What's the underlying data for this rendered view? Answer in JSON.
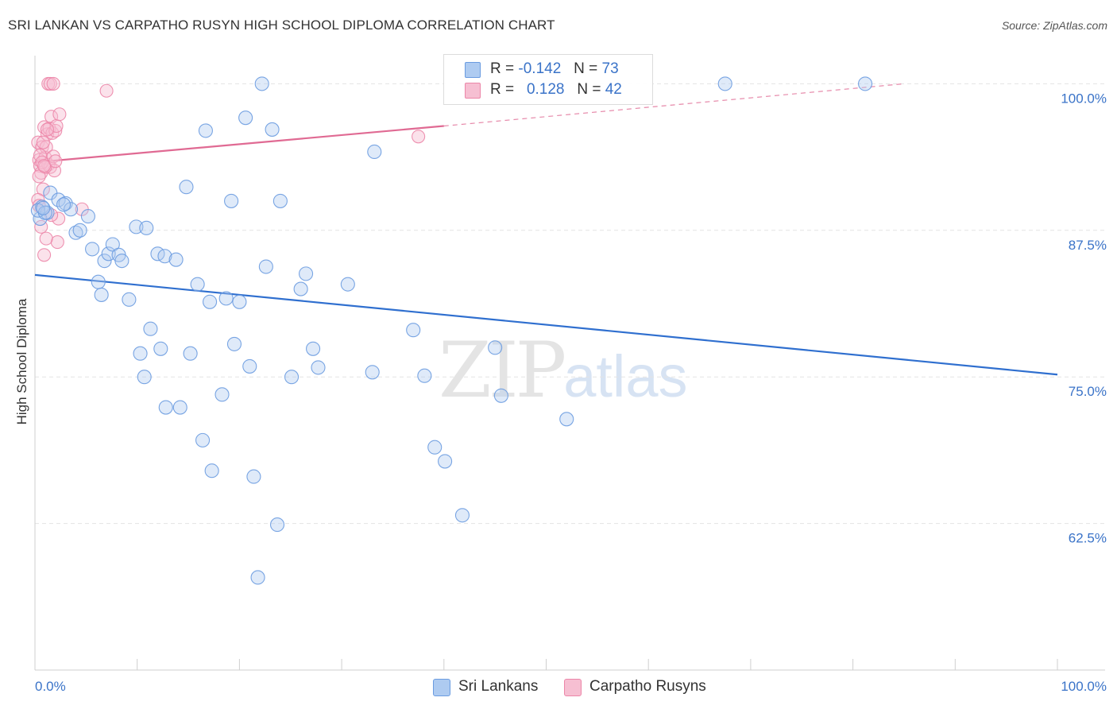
{
  "header": {
    "title": "SRI LANKAN VS CARPATHO RUSYN HIGH SCHOOL DIPLOMA CORRELATION CHART",
    "source": "Source: ZipAtlas.com"
  },
  "stats": {
    "sri": {
      "r_label": "R =",
      "r_value": "-0.142",
      "n_label": "N =",
      "n_value": "73"
    },
    "carp": {
      "r_label": "R =",
      "r_value": "0.128",
      "n_label": "N =",
      "n_value": "42"
    }
  },
  "colors": {
    "sri": "#6a9be0",
    "sri_fill": "#aecbf1",
    "sri_line": "#2f6fcf",
    "carp": "#ec86a8",
    "carp_fill": "#f6bfd2",
    "carp_line": "#e06a93",
    "tick_label": "#3a73c8",
    "grid": "#e3e3e3"
  },
  "chart_data": {
    "type": "scatter",
    "title": "SRI LANKAN VS CARPATHO RUSYN HIGH SCHOOL DIPLOMA CORRELATION CHART",
    "xlabel": "",
    "ylabel": "High School Diploma",
    "xlim": [
      0,
      100
    ],
    "ylim": [
      50,
      102.4
    ],
    "x_tick_labels": [
      "0.0%",
      "100.0%"
    ],
    "y_ticks": [
      62.5,
      75.0,
      87.5,
      100.0
    ],
    "y_tick_labels": [
      "62.5%",
      "75.0%",
      "87.5%",
      "100.0%"
    ],
    "grid": true,
    "legend_placement": "bottom",
    "watermark": {
      "main": "ZIP",
      "sub": "atlas"
    },
    "series": [
      {
        "name": "Sri Lankans",
        "trend": [
          [
            0,
            83.7
          ],
          [
            100,
            75.2
          ]
        ],
        "points": [
          [
            0.5,
            88.5
          ],
          [
            0.7,
            89.5
          ],
          [
            1.2,
            89.0
          ],
          [
            1.5,
            90.7
          ],
          [
            2.3,
            90.1
          ],
          [
            3.0,
            89.8
          ],
          [
            3.5,
            89.3
          ],
          [
            4.0,
            87.3
          ],
          [
            4.4,
            87.5
          ],
          [
            5.2,
            88.7
          ],
          [
            5.6,
            85.9
          ],
          [
            6.2,
            83.1
          ],
          [
            6.5,
            82.0
          ],
          [
            6.8,
            84.9
          ],
          [
            7.2,
            85.5
          ],
          [
            7.6,
            86.3
          ],
          [
            8.2,
            85.4
          ],
          [
            8.5,
            84.9
          ],
          [
            9.2,
            81.6
          ],
          [
            9.9,
            87.8
          ],
          [
            10.3,
            77.0
          ],
          [
            10.7,
            75.0
          ],
          [
            10.9,
            87.7
          ],
          [
            11.3,
            79.1
          ],
          [
            12.0,
            85.5
          ],
          [
            12.3,
            77.4
          ],
          [
            12.7,
            85.3
          ],
          [
            12.8,
            72.4
          ],
          [
            13.8,
            85.0
          ],
          [
            14.2,
            72.4
          ],
          [
            14.8,
            91.2
          ],
          [
            15.2,
            77.0
          ],
          [
            15.9,
            82.9
          ],
          [
            16.4,
            69.6
          ],
          [
            16.7,
            96.0
          ],
          [
            17.1,
            81.4
          ],
          [
            17.3,
            67.0
          ],
          [
            18.3,
            73.5
          ],
          [
            18.7,
            81.7
          ],
          [
            19.2,
            90.0
          ],
          [
            19.5,
            77.8
          ],
          [
            20.0,
            81.4
          ],
          [
            20.6,
            97.1
          ],
          [
            21.0,
            75.9
          ],
          [
            21.4,
            66.5
          ],
          [
            22.2,
            100.0
          ],
          [
            22.6,
            84.4
          ],
          [
            23.2,
            96.1
          ],
          [
            23.7,
            62.4
          ],
          [
            24.0,
            90.0
          ],
          [
            25.1,
            75.0
          ],
          [
            26.0,
            82.5
          ],
          [
            26.5,
            83.8
          ],
          [
            27.2,
            77.4
          ],
          [
            27.7,
            75.8
          ],
          [
            30.6,
            82.9
          ],
          [
            33.0,
            75.4
          ],
          [
            33.2,
            94.2
          ],
          [
            37.0,
            79.0
          ],
          [
            38.1,
            75.1
          ],
          [
            39.1,
            69.0
          ],
          [
            40.1,
            67.8
          ],
          [
            41.8,
            63.2
          ],
          [
            45.0,
            77.5
          ],
          [
            45.6,
            73.4
          ],
          [
            52.0,
            71.4
          ],
          [
            67.5,
            100.0
          ],
          [
            81.2,
            100.0
          ],
          [
            21.8,
            57.9
          ],
          [
            0.3,
            89.2
          ],
          [
            1.0,
            89.0
          ],
          [
            0.8,
            89.4
          ],
          [
            2.8,
            89.7
          ]
        ]
      },
      {
        "name": "Carpatho Rusyns",
        "trend": [
          [
            0,
            93.3
          ],
          [
            40,
            96.4
          ]
        ],
        "trend_dashed": [
          [
            40,
            96.4
          ],
          [
            85,
            100.0
          ]
        ],
        "points": [
          [
            0.3,
            95.0
          ],
          [
            0.4,
            93.5
          ],
          [
            0.5,
            93.0
          ],
          [
            0.6,
            92.4
          ],
          [
            0.7,
            94.6
          ],
          [
            0.8,
            91.0
          ],
          [
            0.9,
            96.3
          ],
          [
            1.0,
            93.7
          ],
          [
            1.1,
            94.6
          ],
          [
            1.2,
            95.7
          ],
          [
            1.3,
            93.1
          ],
          [
            1.4,
            96.2
          ],
          [
            1.5,
            92.9
          ],
          [
            1.6,
            97.2
          ],
          [
            1.7,
            95.8
          ],
          [
            1.8,
            93.8
          ],
          [
            1.9,
            92.6
          ],
          [
            2.0,
            96.0
          ],
          [
            2.1,
            96.4
          ],
          [
            2.2,
            86.5
          ],
          [
            2.3,
            88.5
          ],
          [
            2.4,
            97.4
          ],
          [
            0.6,
            87.8
          ],
          [
            0.9,
            85.4
          ],
          [
            1.1,
            86.8
          ],
          [
            1.3,
            100.0
          ],
          [
            1.5,
            100.0
          ],
          [
            1.8,
            100.0
          ],
          [
            0.5,
            93.9
          ],
          [
            0.7,
            93.3
          ],
          [
            1.0,
            92.9
          ],
          [
            4.6,
            89.3
          ],
          [
            7.0,
            99.4
          ],
          [
            37.5,
            95.5
          ],
          [
            0.4,
            92.1
          ],
          [
            1.2,
            96.1
          ],
          [
            0.8,
            95.0
          ],
          [
            0.3,
            90.1
          ],
          [
            0.9,
            93.0
          ],
          [
            1.6,
            88.8
          ],
          [
            0.4,
            89.6
          ],
          [
            2.0,
            93.4
          ]
        ]
      }
    ]
  }
}
